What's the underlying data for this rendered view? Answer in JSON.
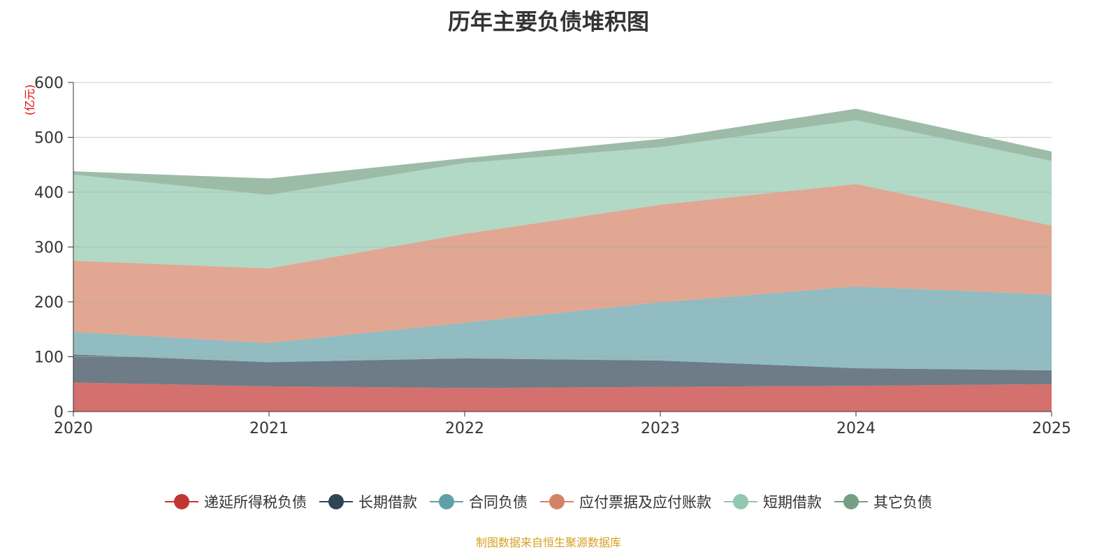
{
  "chart_data": {
    "type": "area",
    "stacked": true,
    "title": "历年主要负债堆积图",
    "ylabel": "(亿元)",
    "xlabel": "",
    "x": [
      "2020",
      "2021",
      "2022",
      "2023",
      "2024",
      "2025"
    ],
    "ylim": [
      0,
      600
    ],
    "yticks": [
      "0",
      "100",
      "200",
      "300",
      "400",
      "500",
      "600"
    ],
    "grid": true,
    "legend_position": "bottom",
    "series": [
      {
        "name": "递延所得税负债",
        "color": "#c23531",
        "values": [
          53,
          46,
          43,
          45,
          47,
          50
        ]
      },
      {
        "name": "长期借款",
        "color": "#2f4554",
        "values": [
          51,
          44,
          54,
          48,
          32,
          25
        ]
      },
      {
        "name": "合同负债",
        "color": "#61a0a8",
        "values": [
          41,
          35,
          65,
          106,
          149,
          138
        ]
      },
      {
        "name": "应付票据及应付账款",
        "color": "#d48265",
        "values": [
          130,
          136,
          162,
          178,
          187,
          126
        ]
      },
      {
        "name": "短期借款",
        "color": "#91c7ae",
        "values": [
          157,
          134,
          129,
          105,
          116,
          118
        ]
      },
      {
        "name": "其它负债",
        "color": "#749f83",
        "values": [
          6,
          30,
          9,
          15,
          21,
          17
        ]
      }
    ]
  },
  "footer": "制图数据来自恒生聚源数据库"
}
